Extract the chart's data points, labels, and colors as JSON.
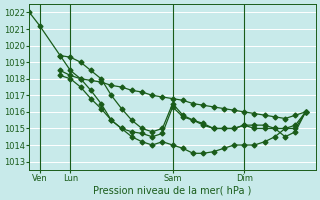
{
  "background_color": "#c8eaea",
  "grid_color": "#ffffff",
  "line_color": "#1a5c1a",
  "marker": "D",
  "marker_size": 2.5,
  "ylim": [
    1012.5,
    1022.5
  ],
  "ylabel_ticks": [
    1013,
    1014,
    1015,
    1016,
    1017,
    1018,
    1019,
    1020,
    1021,
    1022
  ],
  "xlabel": "Pression niveau de la mer( hPa )",
  "xtick_labels": [
    "Ven",
    "Lun",
    "Sam",
    "Dim"
  ],
  "xtick_positions": [
    1,
    4,
    14,
    21
  ],
  "vline_positions": [
    1,
    4,
    14,
    21
  ],
  "xlim": [
    0,
    28
  ],
  "series": [
    {
      "x": [
        0,
        1,
        3,
        4,
        5,
        6,
        7,
        8,
        9,
        10,
        11,
        12,
        13,
        14,
        15,
        16,
        17,
        18,
        19,
        20,
        21,
        22,
        23,
        24,
        25,
        26,
        27
      ],
      "y": [
        1022.0,
        1021.2,
        1019.4,
        1018.5,
        1018.0,
        1017.9,
        1017.8,
        1017.6,
        1017.5,
        1017.3,
        1017.2,
        1017.0,
        1016.9,
        1016.8,
        1016.7,
        1016.5,
        1016.4,
        1016.3,
        1016.2,
        1016.1,
        1016.0,
        1015.9,
        1015.8,
        1015.7,
        1015.6,
        1015.8,
        1016.0
      ],
      "lw": 0.9
    },
    {
      "x": [
        3,
        4,
        5,
        6,
        7,
        8,
        9,
        10,
        11,
        12,
        13,
        14,
        15,
        16,
        17,
        18,
        19,
        20,
        21,
        22,
        23,
        24,
        25,
        26,
        27
      ],
      "y": [
        1019.4,
        1019.3,
        1019.0,
        1018.5,
        1018.0,
        1017.0,
        1016.2,
        1015.5,
        1015.0,
        1014.8,
        1015.0,
        1016.5,
        1015.8,
        1015.5,
        1015.3,
        1015.0,
        1015.0,
        1015.0,
        1015.2,
        1015.2,
        1015.2,
        1015.0,
        1014.5,
        1014.8,
        1016.0
      ],
      "lw": 0.9
    },
    {
      "x": [
        3,
        4,
        5,
        6,
        7,
        8,
        9,
        10,
        11,
        12,
        13,
        14,
        15,
        16,
        17,
        18,
        19,
        20,
        21,
        22,
        23,
        24,
        25,
        26,
        27
      ],
      "y": [
        1018.5,
        1018.2,
        1018.0,
        1017.3,
        1016.5,
        1015.5,
        1015.0,
        1014.5,
        1014.2,
        1014.0,
        1014.2,
        1014.0,
        1013.8,
        1013.5,
        1013.5,
        1013.6,
        1013.8,
        1014.0,
        1014.0,
        1014.0,
        1014.2,
        1014.5,
        1015.0,
        1015.2,
        1016.0
      ],
      "lw": 0.9
    },
    {
      "x": [
        3,
        4,
        5,
        6,
        7,
        8,
        9,
        10,
        11,
        12,
        13,
        14,
        15,
        16,
        17,
        18,
        19,
        20,
        21,
        22,
        23,
        24,
        25,
        26,
        27
      ],
      "y": [
        1018.2,
        1018.0,
        1017.5,
        1016.8,
        1016.2,
        1015.5,
        1015.0,
        1014.8,
        1014.7,
        1014.5,
        1014.7,
        1016.3,
        1015.7,
        1015.5,
        1015.2,
        1015.0,
        1015.0,
        1015.0,
        1015.2,
        1015.0,
        1015.0,
        1015.0,
        1015.0,
        1015.0,
        1016.0
      ],
      "lw": 0.9
    }
  ]
}
